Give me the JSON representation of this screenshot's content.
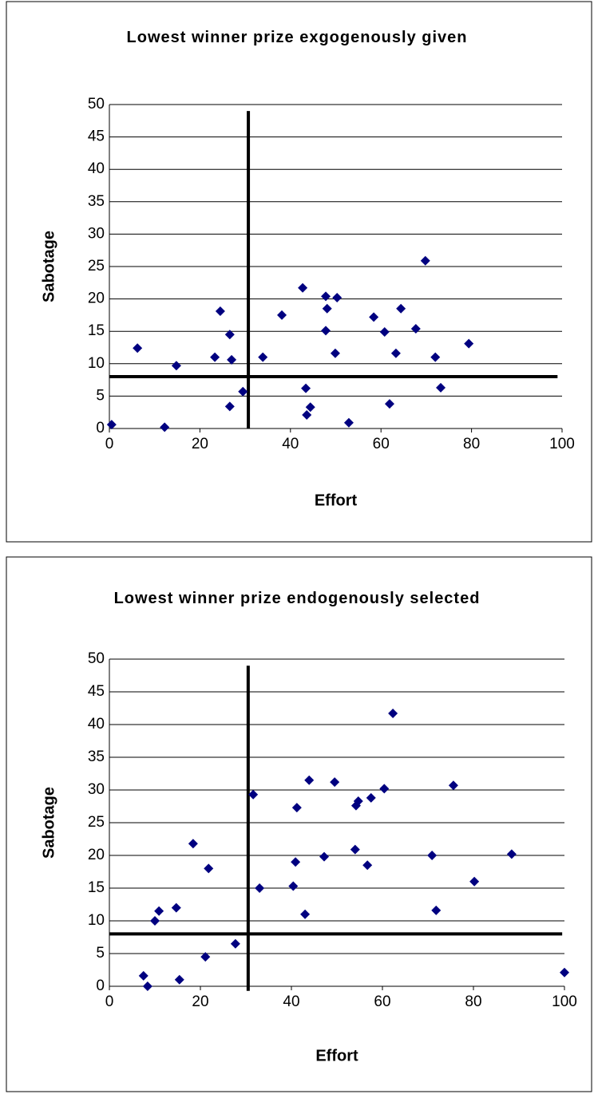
{
  "chart_data": [
    {
      "type": "scatter",
      "title": "Lowest winner prize exgogenously given",
      "x_label": "Effort",
      "y_label": "Sabotage",
      "xlim": [
        0,
        100
      ],
      "ylim": [
        0,
        50
      ],
      "xticks": [
        0,
        20,
        40,
        60,
        80,
        100
      ],
      "yticks": [
        0,
        5,
        10,
        15,
        20,
        25,
        30,
        35,
        40,
        45,
        50
      ],
      "grid": true,
      "reference_lines": [
        {
          "x": [
            30.7,
            30.7
          ],
          "y": [
            0,
            49
          ]
        },
        {
          "x": [
            0,
            99
          ],
          "y": [
            8,
            8
          ]
        }
      ],
      "series": [
        {
          "color": "#000080",
          "x": [
            0.5,
            6.2,
            12.2,
            14.8,
            23.3,
            24.5,
            26.6,
            27,
            26.6,
            29.5,
            33.9,
            38.1,
            42.7,
            43.4,
            43.6,
            44.4,
            47.8,
            48.1,
            47.8,
            50.3,
            49.9,
            52.9,
            58.4,
            60.8,
            61.9,
            63.3,
            64.4,
            67.7,
            69.8,
            72,
            73.2,
            79.4
          ],
          "values": [
            0.6,
            12.4,
            0.2,
            9.7,
            11,
            18.1,
            14.5,
            10.6,
            3.4,
            5.7,
            11,
            17.5,
            21.7,
            6.2,
            2.1,
            3.3,
            20.4,
            18.5,
            15.1,
            20.2,
            11.6,
            0.9,
            17.2,
            14.9,
            3.8,
            11.6,
            18.5,
            15.4,
            25.9,
            11,
            6.3,
            13.1
          ]
        }
      ]
    },
    {
      "type": "scatter",
      "title": "Lowest winner prize endogenously selected",
      "x_label": "Effort",
      "y_label": "Sabotage",
      "xlim": [
        0,
        100
      ],
      "ylim": [
        0,
        50
      ],
      "xticks": [
        0,
        20,
        40,
        60,
        80,
        100
      ],
      "yticks": [
        0,
        5,
        10,
        15,
        20,
        25,
        30,
        35,
        40,
        45,
        50
      ],
      "grid": true,
      "reference_lines": [
        {
          "x": [
            30.5,
            30.5
          ],
          "y": [
            -0.7,
            49
          ]
        },
        {
          "x": [
            0,
            99.5
          ],
          "y": [
            8,
            8
          ]
        }
      ],
      "series": [
        {
          "color": "#000080",
          "x": [
            7.5,
            8.4,
            10,
            10.9,
            14.7,
            15.4,
            18.4,
            21.8,
            21.1,
            27.7,
            31.6,
            33,
            40.4,
            40.9,
            41.2,
            43,
            43.9,
            47.2,
            49.5,
            54,
            54.2,
            54.7,
            56.7,
            57.5,
            60.4,
            62.3,
            70.9,
            71.8,
            75.6,
            80.2,
            88.4,
            100
          ],
          "values": [
            1.6,
            0,
            10,
            11.5,
            12,
            1,
            21.8,
            18,
            4.5,
            6.5,
            29.3,
            15,
            15.3,
            19,
            27.3,
            11,
            31.5,
            19.8,
            31.2,
            20.9,
            27.6,
            28.3,
            18.5,
            28.8,
            30.2,
            41.7,
            20,
            11.6,
            30.7,
            16,
            20.2,
            2.1
          ]
        }
      ]
    }
  ]
}
